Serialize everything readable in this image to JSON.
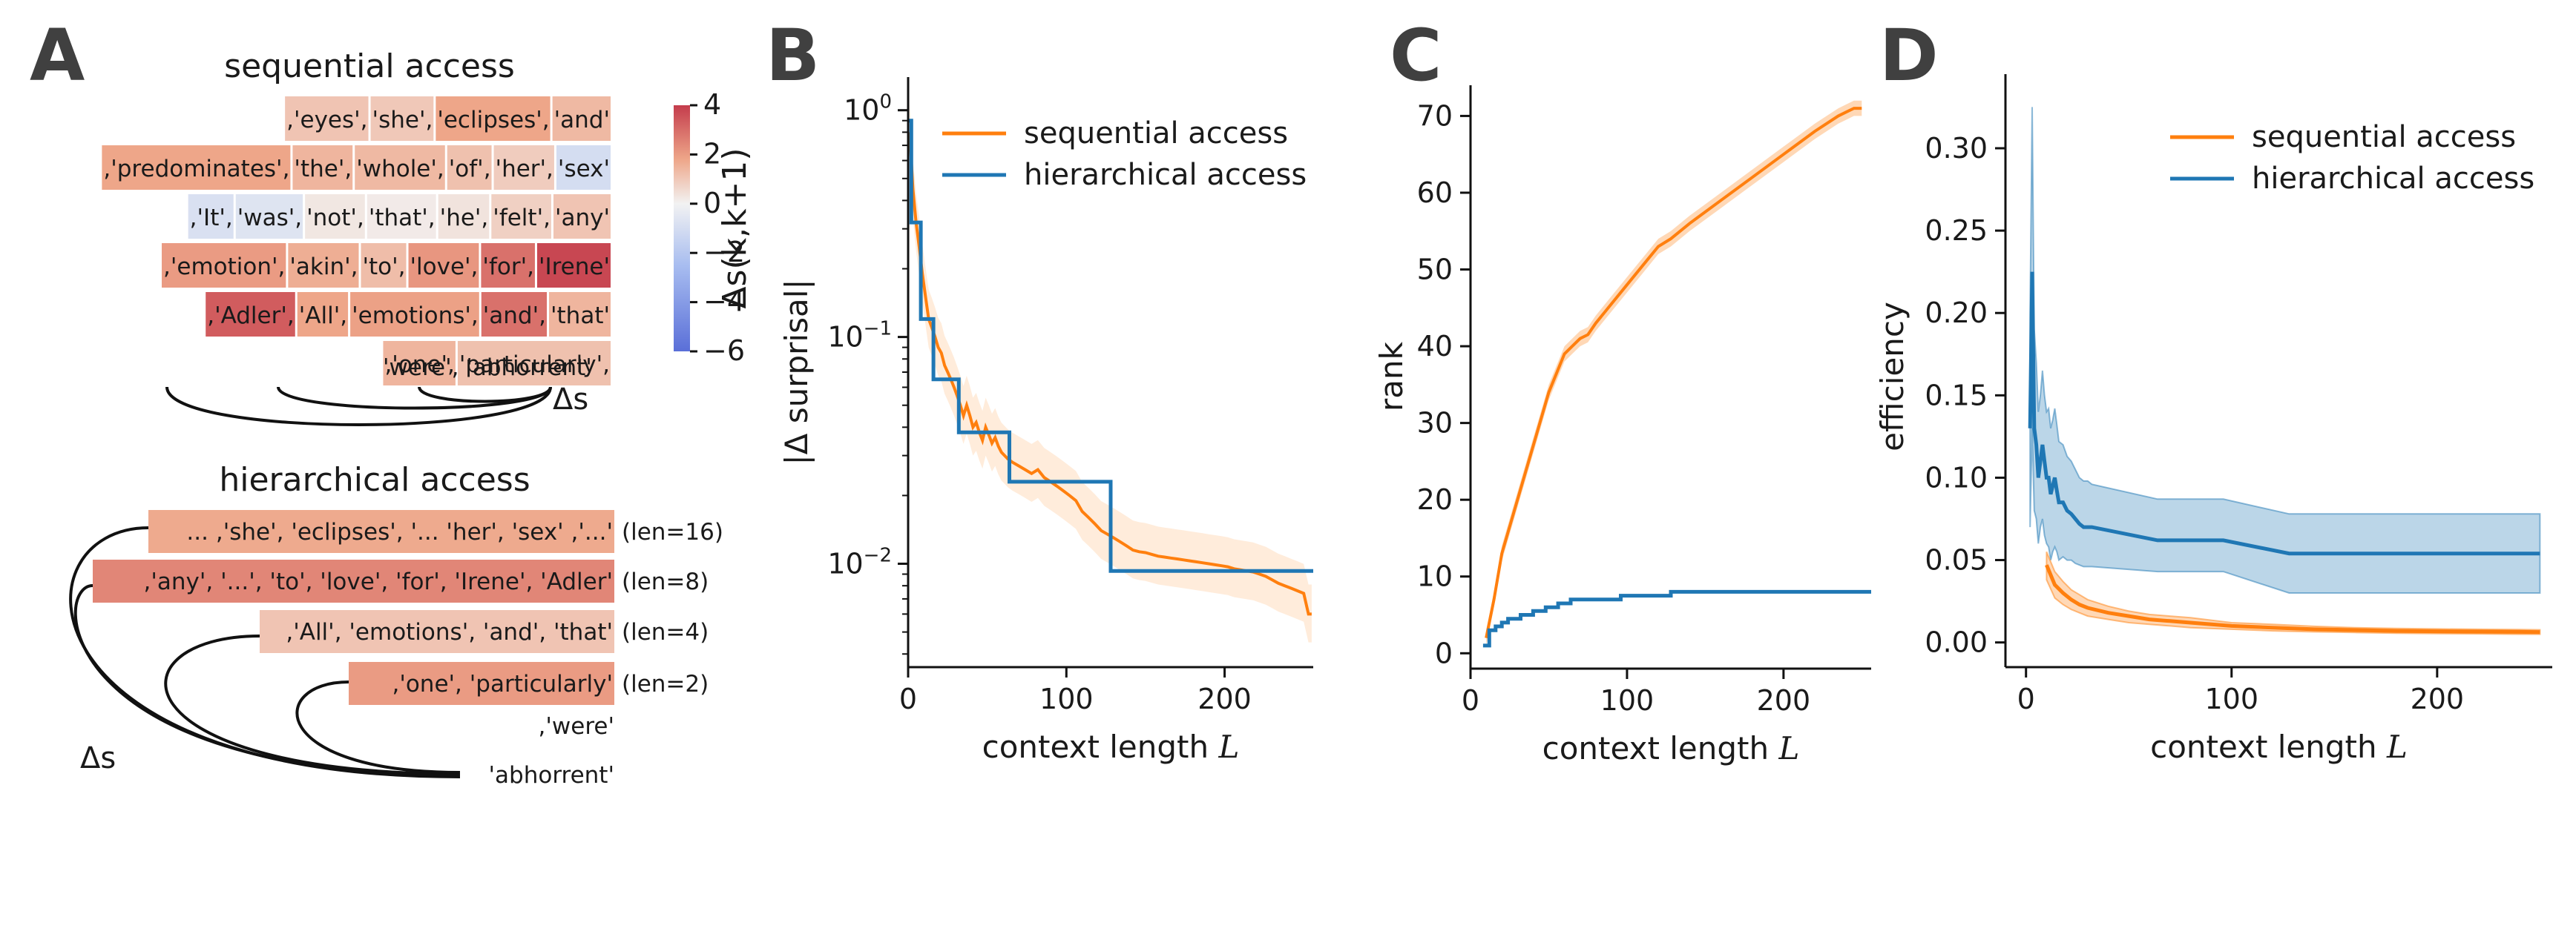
{
  "colors": {
    "sequential": "#ff7f0e",
    "hierarchical": "#1f77b4"
  },
  "panels": {
    "A": {
      "letter": "A",
      "title_seq": "sequential access",
      "title_hier": "hierarchical access",
      "seq_rows": [
        [
          [
            "'eyes',",
            1.2
          ],
          [
            "'she',",
            1.1
          ],
          [
            "'eclipses',",
            2.0
          ],
          [
            "'and'",
            1.5
          ]
        ],
        [
          [
            "'predominates',",
            2.0
          ],
          [
            "'the',",
            1.6
          ],
          [
            "'whole',",
            1.5
          ],
          [
            "'of',",
            1.3
          ],
          [
            "'her',",
            1.0
          ],
          [
            "'sex'",
            -1.2
          ]
        ],
        [
          [
            "'It',",
            -1.0
          ],
          [
            "'was',",
            -0.8
          ],
          [
            "'not',",
            0.3
          ],
          [
            "'that',",
            0.2
          ],
          [
            "'he',",
            0.4
          ],
          [
            "'felt',",
            0.9
          ],
          [
            "'any'",
            1.2
          ]
        ],
        [
          [
            "'emotion',",
            2.2
          ],
          [
            "'akin',",
            1.8
          ],
          [
            "'to',",
            1.4
          ],
          [
            "'love',",
            2.3
          ],
          [
            "'for',",
            3.0
          ],
          [
            "'Irene'",
            3.8
          ]
        ],
        [
          [
            "'Adler',",
            3.4
          ],
          [
            "'All',",
            2.0
          ],
          [
            "'emotions',",
            2.1
          ],
          [
            "'and',",
            3.0
          ],
          [
            "'that'",
            1.6
          ]
        ],
        [
          [
            "'one',",
            1.6
          ],
          [
            "'particularly',",
            1.3
          ]
        ]
      ],
      "seq_plain_tokens": "'were', 'abhorrent'",
      "delta_s_label": "Δs",
      "colorbar": {
        "label": "Δs(k,k+1)",
        "min": -6,
        "max": 4,
        "ticks": [
          4,
          2,
          0,
          -2,
          -4,
          -6
        ]
      },
      "hier_rows": [
        {
          "text": "... ,'she', 'eclipses', '... 'her', 'sex' ,'...'",
          "len": "(len=16)",
          "value": 1.9
        },
        {
          "text": ",'any', '...', 'to', 'love', 'for', 'Irene', 'Adler'",
          "len": "(len=8)",
          "value": 2.6
        },
        {
          "text": ",'All', 'emotions', 'and', 'that'",
          "len": "(len=4)",
          "value": 1.2
        },
        {
          "text": ",'one', 'particularly'",
          "len": "(len=2)",
          "value": 2.2
        }
      ],
      "hier_were": ",'were'",
      "hier_abhorrent": "'abhorrent'"
    },
    "B": {
      "letter": "B"
    },
    "C": {
      "letter": "C"
    },
    "D": {
      "letter": "D"
    }
  },
  "chart_data": [
    {
      "panel": "B",
      "type": "line",
      "xlabel": "context length L",
      "ylabel": "|Δ surprisal|",
      "yscale": "log",
      "xlim": [
        0,
        256
      ],
      "ylim": [
        0.0035,
        1.4
      ],
      "xticks": [
        0,
        100,
        200
      ],
      "yticks": [
        {
          "v": 1,
          "label": "10^0"
        },
        {
          "v": 0.1,
          "label": "10^-1"
        },
        {
          "v": 0.01,
          "label": "10^-2"
        }
      ],
      "legend": "top-right",
      "series": [
        {
          "name": "sequential access",
          "x": [
            1,
            3,
            5,
            7,
            9,
            11,
            13,
            15,
            17,
            19,
            21,
            23,
            25,
            27,
            29,
            31,
            33,
            35,
            37,
            39,
            41,
            43,
            45,
            47,
            49,
            51,
            53,
            55,
            57,
            59,
            61,
            63,
            66,
            70,
            74,
            78,
            82,
            86,
            90,
            94,
            98,
            102,
            106,
            110,
            114,
            118,
            122,
            126,
            130,
            134,
            138,
            142,
            146,
            150,
            154,
            158,
            162,
            166,
            170,
            174,
            178,
            182,
            186,
            190,
            194,
            198,
            202,
            206,
            210,
            214,
            218,
            222,
            226,
            230,
            234,
            238,
            242,
            246,
            250,
            253,
            255
          ],
          "y": [
            0.8,
            0.45,
            0.32,
            0.25,
            0.19,
            0.15,
            0.12,
            0.11,
            0.1,
            0.09,
            0.085,
            0.075,
            0.07,
            0.065,
            0.06,
            0.055,
            0.05,
            0.045,
            0.05,
            0.045,
            0.04,
            0.042,
            0.038,
            0.035,
            0.04,
            0.037,
            0.034,
            0.036,
            0.033,
            0.031,
            0.03,
            0.029,
            0.028,
            0.027,
            0.026,
            0.025,
            0.026,
            0.024,
            0.023,
            0.022,
            0.021,
            0.02,
            0.019,
            0.017,
            0.016,
            0.015,
            0.014,
            0.0135,
            0.013,
            0.0125,
            0.012,
            0.0115,
            0.0113,
            0.0112,
            0.011,
            0.0108,
            0.0107,
            0.0106,
            0.0105,
            0.0104,
            0.0103,
            0.0102,
            0.0101,
            0.01,
            0.0099,
            0.0098,
            0.0097,
            0.0095,
            0.0094,
            0.0093,
            0.0092,
            0.009,
            0.0088,
            0.0085,
            0.0082,
            0.008,
            0.0078,
            0.0076,
            0.0074,
            0.006,
            0.006
          ],
          "band_lo_factor": 0.75,
          "band_hi_factor": 1.35
        },
        {
          "name": "hierarchical access",
          "steps": [
            [
              0,
              0.9
            ],
            [
              2,
              0.32
            ],
            [
              4,
              0.32
            ],
            [
              8,
              0.12
            ],
            [
              16,
              0.065
            ],
            [
              32,
              0.038
            ],
            [
              64,
              0.023
            ],
            [
              128,
              0.0093
            ],
            [
              256,
              0.0093
            ]
          ]
        }
      ]
    },
    {
      "panel": "C",
      "type": "line",
      "xlabel": "context length L",
      "ylabel": "rank",
      "xlim": [
        0,
        256
      ],
      "ylim": [
        -2,
        74
      ],
      "xticks": [
        0,
        100,
        200
      ],
      "yticks": [
        0,
        10,
        20,
        30,
        40,
        50,
        60,
        70
      ],
      "series": [
        {
          "name": "sequential access",
          "x": [
            10,
            15,
            20,
            30,
            40,
            50,
            60,
            65,
            70,
            75,
            80,
            90,
            100,
            110,
            120,
            128,
            140,
            160,
            180,
            200,
            220,
            235,
            240,
            245,
            250
          ],
          "y": [
            2,
            7,
            13,
            20,
            27,
            34,
            39,
            40,
            41,
            41.5,
            43,
            45.5,
            48,
            50.5,
            53,
            54,
            56,
            59,
            62,
            65,
            68,
            70,
            70.5,
            71,
            71
          ],
          "band": 1.0
        },
        {
          "name": "hierarchical access",
          "steps": [
            [
              8,
              1
            ],
            [
              12,
              3
            ],
            [
              16,
              3.5
            ],
            [
              20,
              4
            ],
            [
              24,
              4.5
            ],
            [
              32,
              5
            ],
            [
              40,
              5.5
            ],
            [
              48,
              6
            ],
            [
              56,
              6.5
            ],
            [
              64,
              7
            ],
            [
              96,
              7.5
            ],
            [
              128,
              8
            ],
            [
              160,
              8
            ],
            [
              192,
              8
            ],
            [
              256,
              8
            ]
          ]
        }
      ]
    },
    {
      "panel": "D",
      "type": "line",
      "xlabel": "context length L",
      "ylabel": "efficiency",
      "xlim": [
        -10,
        256
      ],
      "ylim": [
        -0.015,
        0.345
      ],
      "xticks": [
        0,
        100,
        200
      ],
      "yticks": [
        0.0,
        0.05,
        0.1,
        0.15,
        0.2,
        0.25,
        0.3
      ],
      "legend": "top-right",
      "series": [
        {
          "name": "sequential access",
          "x": [
            10,
            14,
            18,
            22,
            26,
            30,
            40,
            50,
            60,
            70,
            80,
            100,
            120,
            140,
            160,
            180,
            200,
            220,
            240,
            250
          ],
          "y": [
            0.047,
            0.035,
            0.03,
            0.026,
            0.023,
            0.021,
            0.018,
            0.016,
            0.014,
            0.013,
            0.012,
            0.01,
            0.009,
            0.008,
            0.0075,
            0.007,
            0.0068,
            0.0066,
            0.0064,
            0.0063
          ],
          "band_lo": [
            0.038,
            0.027,
            0.023,
            0.02,
            0.018,
            0.016,
            0.014,
            0.012,
            0.011,
            0.01,
            0.009,
            0.008,
            0.007,
            0.0064,
            0.006,
            0.0056,
            0.0054,
            0.0052,
            0.005,
            0.005
          ],
          "band_hi": [
            0.055,
            0.043,
            0.037,
            0.032,
            0.029,
            0.026,
            0.022,
            0.019,
            0.017,
            0.016,
            0.015,
            0.012,
            0.011,
            0.0098,
            0.009,
            0.0085,
            0.0082,
            0.008,
            0.0078,
            0.0077
          ]
        },
        {
          "name": "hierarchical access",
          "x": [
            2,
            3,
            4,
            5,
            6,
            7,
            8,
            9,
            10,
            11,
            12,
            13,
            14,
            15,
            16,
            18,
            20,
            22,
            24,
            26,
            28,
            30,
            32,
            64,
            96,
            128,
            160,
            192,
            250
          ],
          "y": [
            0.13,
            0.225,
            0.13,
            0.12,
            0.1,
            0.11,
            0.12,
            0.11,
            0.1,
            0.1,
            0.09,
            0.095,
            0.1,
            0.092,
            0.085,
            0.085,
            0.08,
            0.078,
            0.075,
            0.072,
            0.07,
            0.07,
            0.07,
            0.062,
            0.062,
            0.054,
            0.054,
            0.054,
            0.054
          ],
          "band_lo": [
            0.07,
            0.13,
            0.08,
            0.075,
            0.06,
            0.07,
            0.075,
            0.065,
            0.06,
            0.058,
            0.05,
            0.055,
            0.058,
            0.055,
            0.05,
            0.052,
            0.05,
            0.05,
            0.048,
            0.047,
            0.046,
            0.046,
            0.046,
            0.043,
            0.043,
            0.03,
            0.03,
            0.03,
            0.03
          ],
          "band_hi": [
            0.2,
            0.325,
            0.19,
            0.17,
            0.14,
            0.15,
            0.165,
            0.15,
            0.14,
            0.142,
            0.13,
            0.135,
            0.142,
            0.132,
            0.122,
            0.12,
            0.113,
            0.11,
            0.105,
            0.1,
            0.098,
            0.098,
            0.096,
            0.087,
            0.087,
            0.078,
            0.078,
            0.078,
            0.078
          ]
        }
      ]
    }
  ]
}
